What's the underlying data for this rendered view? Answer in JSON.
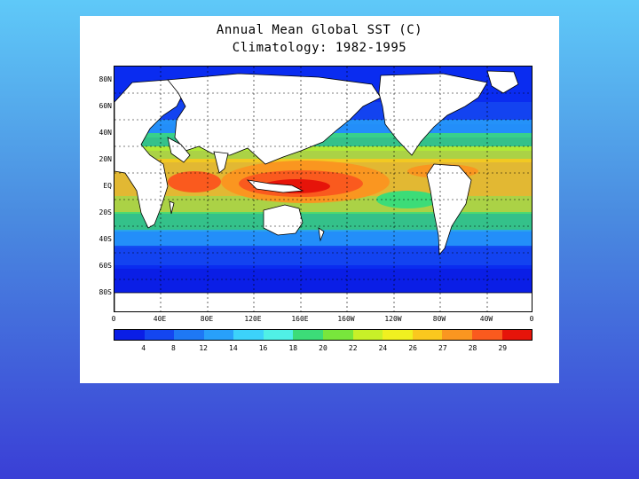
{
  "title_line1": "Annual Mean Global SST (C)",
  "title_line2": "Climatology: 1982-1995",
  "lat_labels": [
    "80N",
    "60N",
    "40N",
    "20N",
    "EQ",
    "20S",
    "40S",
    "60S",
    "80S"
  ],
  "lon_labels": [
    "0",
    "40E",
    "80E",
    "120E",
    "160E",
    "160W",
    "120W",
    "80W",
    "40W",
    "0"
  ],
  "colorbar": {
    "colors": [
      "#0a1ee6",
      "#1446f0",
      "#1e78f5",
      "#28a0fa",
      "#3cd2fa",
      "#50f0e6",
      "#3cdc78",
      "#78e63c",
      "#c8f028",
      "#f0f020",
      "#fac81e",
      "#fa9620",
      "#fa5a1e",
      "#e6140a"
    ],
    "labels": [
      "4",
      "8",
      "12",
      "14",
      "16",
      "18",
      "20",
      "22",
      "24",
      "26",
      "27",
      "28",
      "29"
    ]
  },
  "map_colors": {
    "ocean_cold": "#0a2cf0",
    "land": "#ffffff",
    "coast": "#000000"
  }
}
